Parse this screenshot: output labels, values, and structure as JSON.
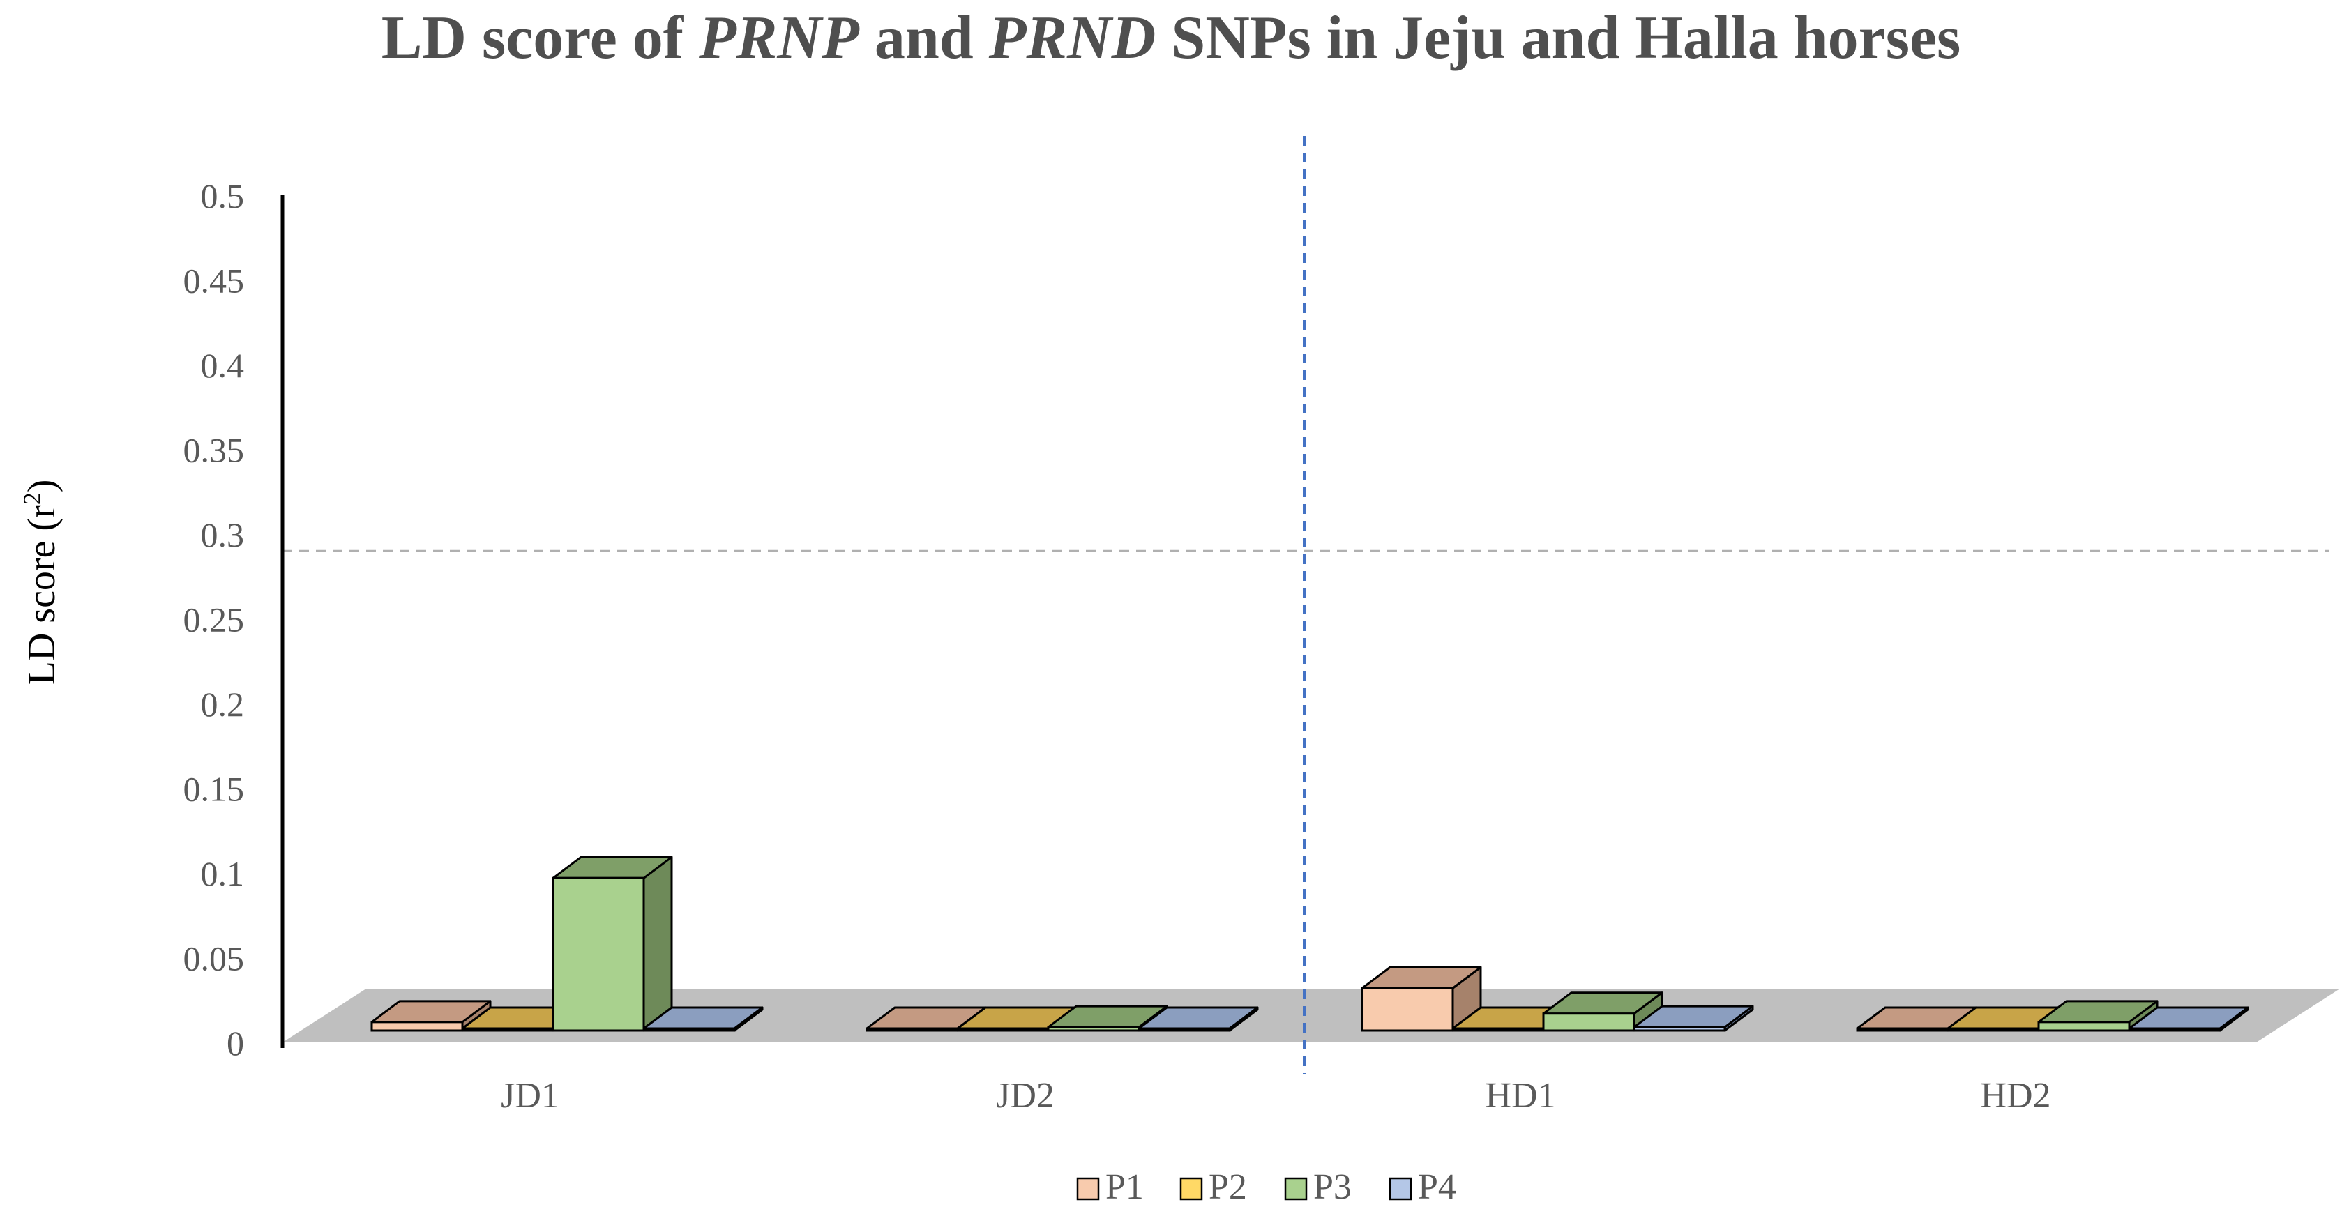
{
  "chart_data": {
    "type": "bar",
    "title_parts": [
      {
        "text": "LD score of ",
        "italic": false
      },
      {
        "text": "PRNP",
        "italic": true
      },
      {
        "text": " and ",
        "italic": false
      },
      {
        "text": "PRND",
        "italic": true
      },
      {
        "text": " SNPs in Jeju and Halla horses",
        "italic": false
      }
    ],
    "ylabel": "LD score (r²)",
    "ylabel_base": "LD score (r",
    "ylabel_sup": "2",
    "ylabel_close": ")",
    "xlabel": "",
    "ylim": [
      0,
      0.5
    ],
    "yticks": [
      "0",
      "0.05",
      "0.1",
      "0.15",
      "0.2",
      "0.25",
      "0.3",
      "0.35",
      "0.4",
      "0.45",
      "0.5"
    ],
    "categories": [
      "JD1",
      "JD2",
      "HD1",
      "HD2"
    ],
    "series": [
      {
        "name": "P1",
        "values": [
          0.005,
          0.001,
          0.025,
          0.001
        ],
        "color": "#f8cbad",
        "side": "#a6826b",
        "top": "#c49a82"
      },
      {
        "name": "P2",
        "values": [
          0.001,
          0.001,
          0.001,
          0.001
        ],
        "color": "#ffd966",
        "side": "#a08a3c",
        "top": "#c8a448"
      },
      {
        "name": "P3",
        "values": [
          0.09,
          0.002,
          0.01,
          0.005
        ],
        "color": "#a9d18e",
        "side": "#6e8a59",
        "top": "#7f9f68"
      },
      {
        "name": "P4",
        "values": [
          0.001,
          0.001,
          0.002,
          0.001
        ],
        "color": "#b4c7e7",
        "side": "#7588a8",
        "top": "#8b9ebf"
      }
    ],
    "reference_line": {
      "y": 0.29,
      "style": "dashed",
      "color": "#b0b0b0"
    },
    "group_divider": {
      "between": [
        "JD2",
        "HD1"
      ],
      "style": "dashed",
      "color": "#4472c4"
    },
    "grid": false,
    "legend_position": "bottom-center",
    "colors": {
      "floor": "#bfbfbf",
      "axis": "#000000"
    }
  }
}
